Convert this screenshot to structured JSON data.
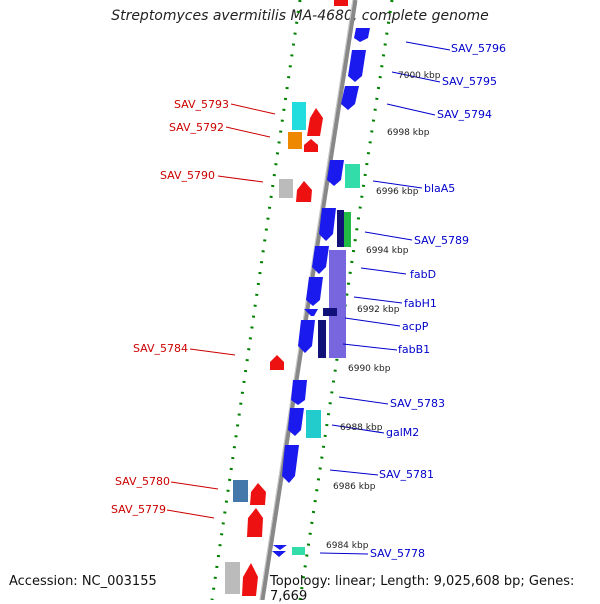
{
  "title": "Streptomyces avermitilis MA-4680, complete genome",
  "accession": "Accession: NC_003155",
  "topology": "Topology: linear; Length: 9,025,608 bp; Genes: 7,669",
  "colors": {
    "right_label": "#0000cc",
    "left_label": "#cc0000",
    "backbone": "#888888",
    "dots": "#008000",
    "blue": "#1a1aee",
    "red": "#ee1111",
    "cyan": "#22dddd",
    "orange": "#ee8800",
    "gray": "#bbbbbb",
    "teal": "#33ddaa",
    "green": "#22bb44",
    "purple": "#7766dd",
    "navy": "#111177",
    "steel": "#4477aa"
  },
  "scale_labels": [
    "7000 kbp",
    "6998 kbp",
    "6996 kbp",
    "6994 kbp",
    "6992 kbp",
    "6990 kbp",
    "6988 kbp",
    "6986 kbp",
    "6984 kbp"
  ],
  "right_genes": [
    "SAV_5796",
    "SAV_5795",
    "SAV_5794",
    "blaA5",
    "SAV_5789",
    "fabD",
    "fabH1",
    "acpP",
    "fabB1",
    "SAV_5783",
    "galM2",
    "SAV_5781",
    "SAV_5778"
  ],
  "left_genes": [
    "SAV_5793",
    "SAV_5792",
    "SAV_5790",
    "SAV_5784",
    "SAV_5780",
    "SAV_5779"
  ]
}
